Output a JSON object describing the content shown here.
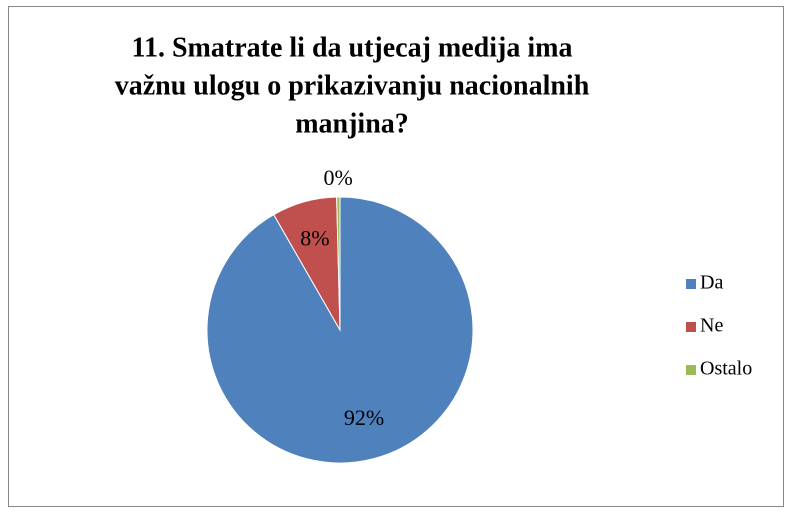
{
  "chart_data": {
    "type": "pie",
    "title": [
      "11. Smatrate li da utjecaj medija ima",
      "važnu ulogu o prikazivanju nacionalnih",
      "manjina?"
    ],
    "categories": [
      "Da",
      "Ne",
      "Ostalo"
    ],
    "values": [
      91.7,
      7.9,
      0.4
    ],
    "value_labels": [
      "92%",
      "8%",
      "0%"
    ],
    "colors": [
      "#4f81bd",
      "#c0504d",
      "#9bbb59"
    ],
    "legend": "right"
  }
}
